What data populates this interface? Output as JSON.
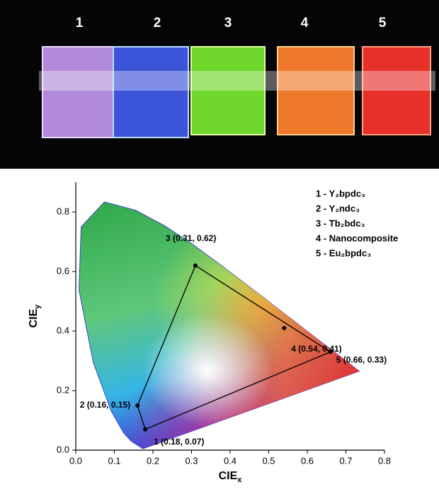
{
  "photo_labels": [
    "1",
    "2",
    "3",
    "4",
    "5"
  ],
  "chart_data": {
    "type": "scatter",
    "x_label": "CIE",
    "x_label_sub": "x",
    "y_label": "CIE",
    "y_label_sub": "y",
    "xlim": [
      0,
      0.8
    ],
    "ylim": [
      0,
      0.9
    ],
    "xticks": [
      {
        "value": 0,
        "label": "0.0"
      },
      0.1,
      0.2,
      0.3,
      0.4,
      0.5,
      0.6,
      0.7,
      0.8
    ],
    "yticks": [
      {
        "value": 0,
        "label": "0.0"
      },
      0.2,
      0.4,
      0.6,
      0.8
    ],
    "legend": [
      "1 - Y₂bpdc₃",
      "2 - Y₂ndc₃",
      "3 - Tb₂bdc₃",
      "4 - Nanocomposite",
      "5 - Eu₂bpdc₃"
    ],
    "legend_position": "upper right",
    "series": [
      {
        "name": "points",
        "color": "#000000",
        "x": [
          0.18,
          0.16,
          0.31,
          0.54,
          0.66
        ],
        "values": [
          0.07,
          0.15,
          0.62,
          0.41,
          0.33
        ],
        "value_labels": [
          "1 (0.18, 0.07)",
          "2 (0.16, 0.15)",
          "3 (0.31, 0.62)",
          "4 (0.54, 0.41)",
          "5 (0.66, 0.33)"
        ]
      }
    ]
  }
}
